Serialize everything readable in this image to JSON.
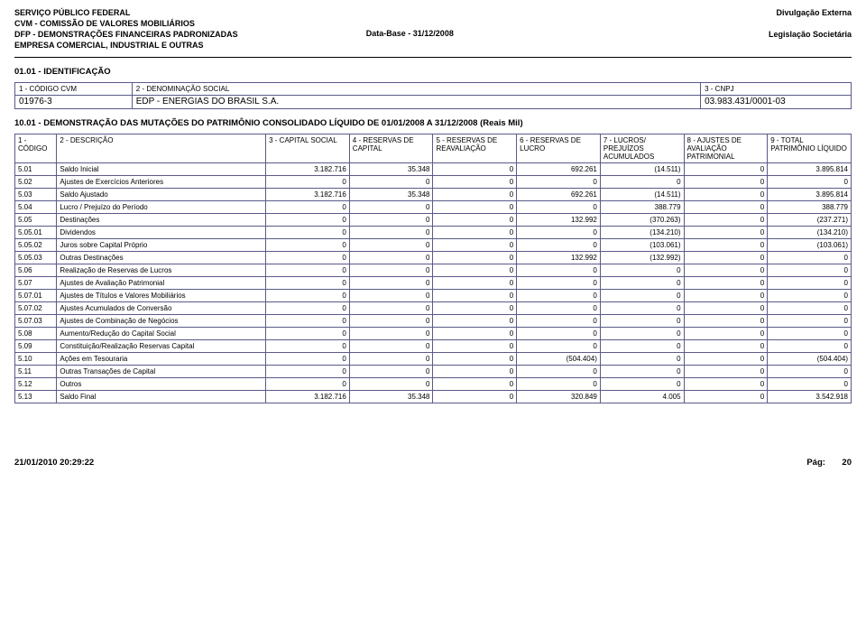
{
  "header": {
    "line1_left": "SERVIÇO PÚBLICO FEDERAL",
    "line1_right": "Divulgação Externa",
    "line2_left": "CVM - COMISSÃO DE VALORES MOBILIÁRIOS",
    "line3_left": "DFP - DEMONSTRAÇÕES FINANCEIRAS PADRONIZADAS",
    "line3_mid": "Data-Base - 31/12/2008",
    "line3_right": "Legislação Societária",
    "line4_left": "EMPRESA COMERCIAL, INDUSTRIAL E OUTRAS"
  },
  "identification": {
    "section_title": "01.01 - IDENTIFICAÇÃO",
    "col1_label": "1 - CÓDIGO CVM",
    "col1_value": "01976-3",
    "col2_label": "2 - DENOMINAÇÃO SOCIAL",
    "col2_value": "EDP - ENERGIAS DO BRASIL S.A.",
    "col3_label": "3 - CNPJ",
    "col3_value": "03.983.431/0001-03"
  },
  "mutations": {
    "title": "10.01 - DEMONSTRAÇÃO DAS MUTAÇÕES DO PATRIMÔNIO CONSOLIDADO LÍQUIDO DE 01/01/2008 A 31/12/2008 (Reais Mil)",
    "columns": [
      "1 - CÓDIGO",
      "2 - DESCRIÇÃO",
      "3 - CAPITAL SOCIAL",
      "4 - RESERVAS DE CAPITAL",
      "5 - RESERVAS DE REAVALIAÇÃO",
      "6 - RESERVAS DE LUCRO",
      "7 - LUCROS/ PREJUÍZOS ACUMULADOS",
      "8 - AJUSTES DE AVALIAÇÃO PATRIMONIAL",
      "9 - TOTAL PATRIMÔNIO LÍQUIDO"
    ],
    "col_widths_pct": [
      5,
      25,
      10,
      10,
      10,
      10,
      10,
      10,
      10
    ],
    "rows": [
      [
        "5.01",
        "Saldo Inicial",
        "3.182.716",
        "35.348",
        "0",
        "692.261",
        "(14.511)",
        "0",
        "3.895.814"
      ],
      [
        "5.02",
        "Ajustes de Exercícios Anteriores",
        "0",
        "0",
        "0",
        "0",
        "0",
        "0",
        "0"
      ],
      [
        "5.03",
        "Saldo Ajustado",
        "3.182.716",
        "35.348",
        "0",
        "692.261",
        "(14.511)",
        "0",
        "3.895.814"
      ],
      [
        "5.04",
        "Lucro / Prejuízo do Período",
        "0",
        "0",
        "0",
        "0",
        "388.779",
        "0",
        "388.779"
      ],
      [
        "5.05",
        "Destinações",
        "0",
        "0",
        "0",
        "132.992",
        "(370.263)",
        "0",
        "(237.271)"
      ],
      [
        "5.05.01",
        "Dividendos",
        "0",
        "0",
        "0",
        "0",
        "(134.210)",
        "0",
        "(134.210)"
      ],
      [
        "5.05.02",
        "Juros sobre Capital Próprio",
        "0",
        "0",
        "0",
        "0",
        "(103.061)",
        "0",
        "(103.061)"
      ],
      [
        "5.05.03",
        "Outras Destinações",
        "0",
        "0",
        "0",
        "132.992",
        "(132.992)",
        "0",
        "0"
      ],
      [
        "5.06",
        "Realização de Reservas de Lucros",
        "0",
        "0",
        "0",
        "0",
        "0",
        "0",
        "0"
      ],
      [
        "5.07",
        "Ajustes de Avaliação Patrimonial",
        "0",
        "0",
        "0",
        "0",
        "0",
        "0",
        "0"
      ],
      [
        "5.07.01",
        "Ajustes de Títulos e Valores Mobiliários",
        "0",
        "0",
        "0",
        "0",
        "0",
        "0",
        "0"
      ],
      [
        "5.07.02",
        "Ajustes Acumulados de Conversão",
        "0",
        "0",
        "0",
        "0",
        "0",
        "0",
        "0"
      ],
      [
        "5.07.03",
        "Ajustes de Combinação de Negócios",
        "0",
        "0",
        "0",
        "0",
        "0",
        "0",
        "0"
      ],
      [
        "5.08",
        "Aumento/Redução do Capital Social",
        "0",
        "0",
        "0",
        "0",
        "0",
        "0",
        "0"
      ],
      [
        "5.09",
        "Constituição/Realização Reservas Capital",
        "0",
        "0",
        "0",
        "0",
        "0",
        "0",
        "0"
      ],
      [
        "5.10",
        "Ações em Tesouraria",
        "0",
        "0",
        "0",
        "(504.404)",
        "0",
        "0",
        "(504.404)"
      ],
      [
        "5.11",
        "Outras Transações de Capital",
        "0",
        "0",
        "0",
        "0",
        "0",
        "0",
        "0"
      ],
      [
        "5.12",
        "Outros",
        "0",
        "0",
        "0",
        "0",
        "0",
        "0",
        "0"
      ],
      [
        "5.13",
        "Saldo Final",
        "3.182.716",
        "35.348",
        "0",
        "320.849",
        "4.005",
        "0",
        "3.542.918"
      ]
    ]
  },
  "footer": {
    "timestamp": "21/01/2010 20:29:22",
    "page_label": "Pág:",
    "page_num": "20"
  },
  "colors": {
    "border": "#5a5a8a",
    "text": "#000000",
    "background": "#ffffff"
  }
}
